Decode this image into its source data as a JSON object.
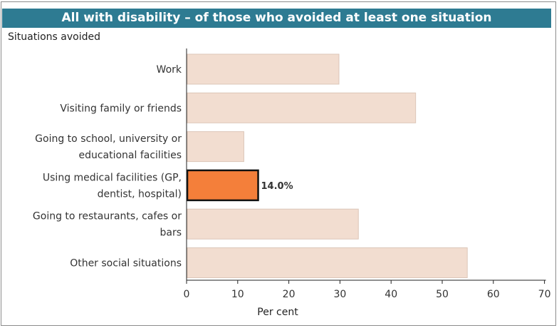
{
  "title": "All with disability – of those who avoided at least one situation",
  "colors": {
    "title_bg": "#2e7b92",
    "bar_default": "#f2ddd0",
    "bar_default_stroke": "#dcc6b8",
    "bar_highlight": "#f47f3a",
    "bar_highlight_stroke": "#111111",
    "axis": "#222222"
  },
  "chart_data": {
    "type": "bar",
    "orientation": "horizontal",
    "title": "All with disability – of those who avoided at least one situation",
    "ylabel": "Situations avoided",
    "xlabel": "Per cent",
    "xlim": [
      0,
      70
    ],
    "xticks": [
      0,
      10,
      20,
      30,
      40,
      50,
      60,
      70
    ],
    "categories": [
      [
        "Work"
      ],
      [
        "Visiting family or friends"
      ],
      [
        "Going to school, university or",
        "educational facilities"
      ],
      [
        "Using medical facilities (GP,",
        "dentist, hospital)"
      ],
      [
        "Going to restaurants, cafes or",
        "bars"
      ],
      [
        "Other social situations"
      ]
    ],
    "values": [
      29.8,
      44.8,
      11.2,
      14.0,
      33.6,
      54.9
    ],
    "highlighted_index": 3,
    "data_labels": [
      "",
      "",
      "",
      "14.0%",
      "",
      ""
    ],
    "grid": false
  }
}
